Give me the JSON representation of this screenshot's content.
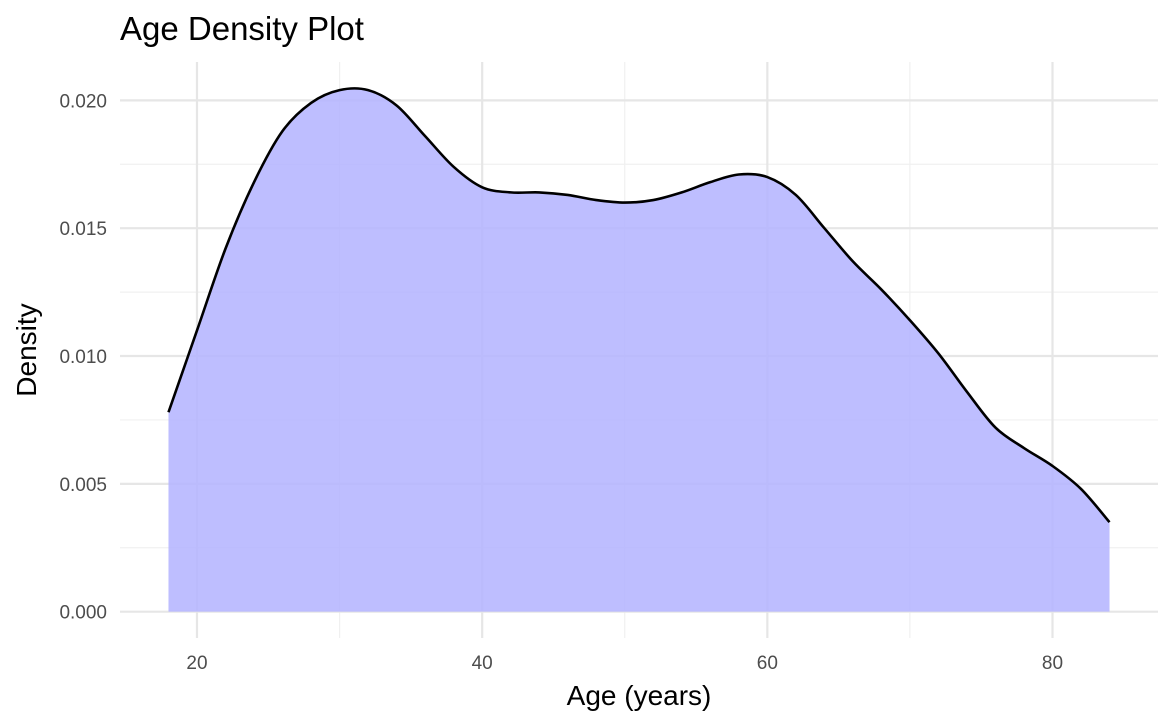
{
  "chart_data": {
    "type": "area",
    "title": "Age Density Plot",
    "xlabel": "Age (years)",
    "ylabel": "Density",
    "xlim": [
      14.6,
      87.4
    ],
    "ylim": [
      -0.00103,
      0.0215
    ],
    "x_ticks": [
      20,
      40,
      60,
      80
    ],
    "x_tick_labels": [
      "20",
      "40",
      "60",
      "80"
    ],
    "x_minor_ticks": [
      30,
      50,
      70
    ],
    "y_ticks": [
      0.0,
      0.005,
      0.01,
      0.015,
      0.02
    ],
    "y_tick_labels": [
      "0.000",
      "0.005",
      "0.010",
      "0.015",
      "0.020"
    ],
    "y_minor_ticks": [
      0.0025,
      0.0075,
      0.0125,
      0.0175
    ],
    "grid": true,
    "legend": "none",
    "series": [
      {
        "x": [
          18,
          20,
          22,
          24,
          26,
          28,
          30,
          32,
          34,
          36,
          38,
          40,
          42,
          44,
          46,
          48,
          50,
          52,
          54,
          56,
          58,
          60,
          62,
          64,
          66,
          68,
          70,
          72,
          74,
          76,
          78,
          80,
          82,
          84
        ],
        "y": [
          0.0078,
          0.011,
          0.0142,
          0.0168,
          0.0188,
          0.0199,
          0.0204,
          0.0204,
          0.0198,
          0.0186,
          0.0174,
          0.0166,
          0.0164,
          0.0164,
          0.0163,
          0.0161,
          0.016,
          0.0161,
          0.0164,
          0.0168,
          0.0171,
          0.017,
          0.0163,
          0.015,
          0.0137,
          0.0126,
          0.0114,
          0.0101,
          0.0086,
          0.0072,
          0.0064,
          0.0057,
          0.0048,
          0.0035
        ]
      }
    ],
    "fill_color": "#b3b3ff",
    "line_color": "#000000"
  }
}
